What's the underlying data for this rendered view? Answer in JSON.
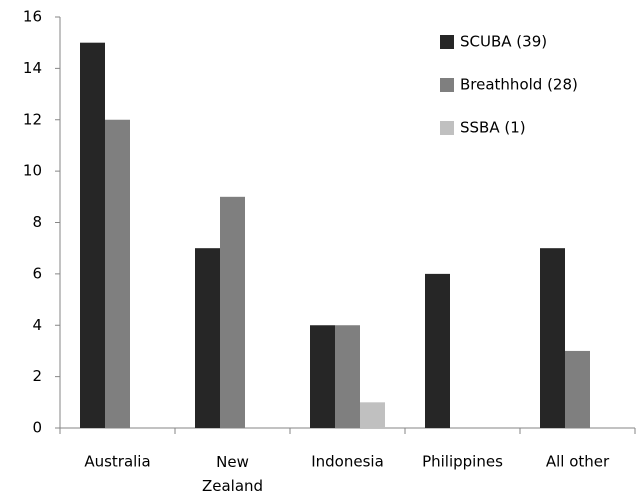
{
  "chart_data": {
    "type": "bar",
    "categories": [
      "Australia",
      "New Zealand",
      "Indonesia",
      "Philippines",
      "All other"
    ],
    "series": [
      {
        "name": "SCUBA (39)",
        "color": "#262626",
        "values": [
          15,
          7,
          4,
          6,
          7
        ]
      },
      {
        "name": "Breathhold (28)",
        "color": "#7f7f7f",
        "values": [
          12,
          9,
          4,
          0,
          3
        ]
      },
      {
        "name": "SSBA (1)",
        "color": "#c0c0c0",
        "values": [
          0,
          0,
          1,
          0,
          0
        ]
      }
    ],
    "ylim": [
      0,
      16
    ],
    "yticks": [
      0,
      2,
      4,
      6,
      8,
      10,
      12,
      14,
      16
    ],
    "grid": false,
    "legend": "top-right"
  }
}
